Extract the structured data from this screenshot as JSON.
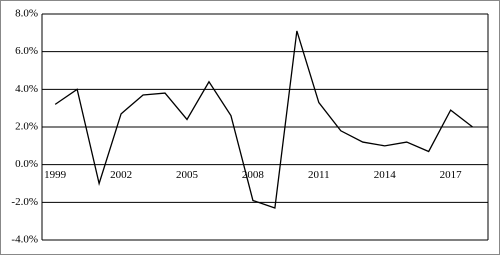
{
  "chart_data": {
    "type": "line",
    "x": [
      1999,
      2000,
      2001,
      2002,
      2003,
      2004,
      2005,
      2006,
      2007,
      2008,
      2009,
      2010,
      2011,
      2012,
      2013,
      2014,
      2015,
      2016,
      2017,
      2018
    ],
    "values": [
      3.2,
      4.0,
      -1.0,
      2.7,
      3.7,
      3.8,
      2.4,
      4.4,
      2.6,
      -1.9,
      -2.3,
      7.1,
      3.3,
      1.8,
      1.2,
      1.0,
      1.2,
      0.7,
      2.9,
      2.0
    ],
    "color": "#000000",
    "xlim": [
      1998.4,
      2018.7
    ],
    "xticks": [
      1999,
      2002,
      2005,
      2008,
      2011,
      2014,
      2017
    ],
    "ylim": [
      -4,
      8
    ],
    "yticks": [
      {
        "value": -4,
        "label": "-4.0%"
      },
      {
        "value": -2,
        "label": "-2.0%"
      },
      {
        "value": 0,
        "label": "0.0%"
      },
      {
        "value": 2,
        "label": "2.0%"
      },
      {
        "value": 4,
        "label": "4.0%"
      },
      {
        "value": 6,
        "label": "6.0%"
      },
      {
        "value": 8,
        "label": "8.0%"
      }
    ],
    "grid": true
  }
}
